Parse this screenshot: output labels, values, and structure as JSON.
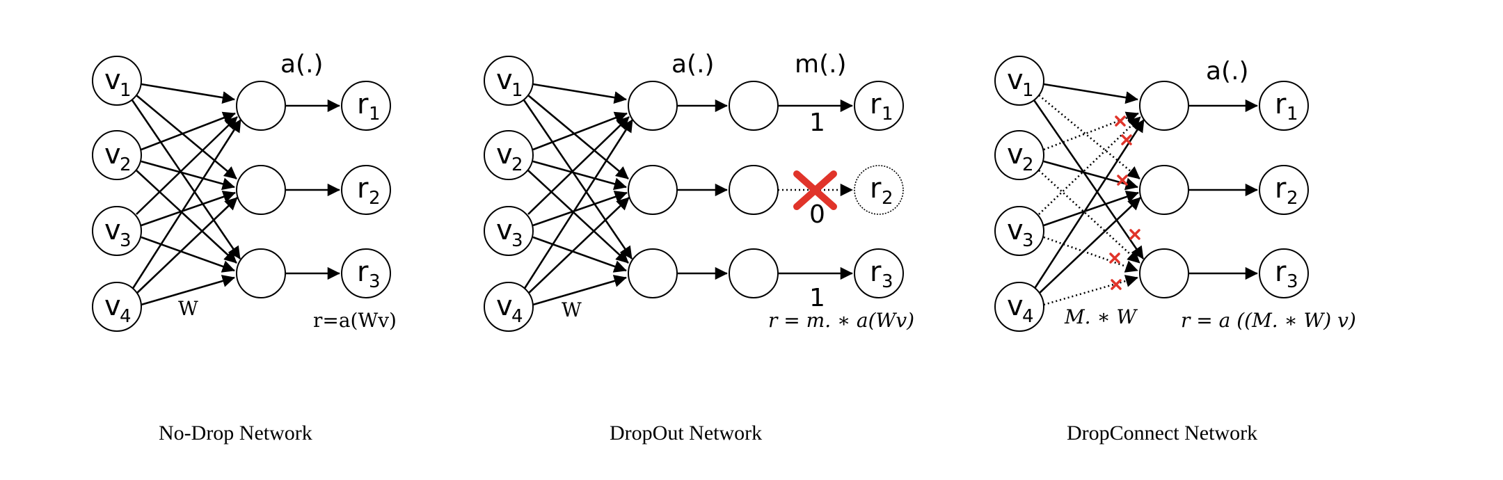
{
  "colors": {
    "line": "#000000",
    "drop_mark": "#e0342a"
  },
  "panels": [
    {
      "id": "nodrop",
      "inputs": [
        "v",
        "v",
        "v",
        "v"
      ],
      "input_subs": [
        "1",
        "2",
        "3",
        "4"
      ],
      "outputs": [
        "r",
        "r",
        "r"
      ],
      "output_subs": [
        "1",
        "2",
        "3"
      ],
      "activation_label": "a(.)",
      "weight_label": "W",
      "formula": "r=a(Wv)",
      "caption": "No-Drop Network"
    },
    {
      "id": "dropout",
      "inputs": [
        "v",
        "v",
        "v",
        "v"
      ],
      "input_subs": [
        "1",
        "2",
        "3",
        "4"
      ],
      "outputs": [
        "r",
        "r",
        "r"
      ],
      "output_subs": [
        "1",
        "2",
        "3"
      ],
      "activation_label": "a(.)",
      "mask_label": "m(.)",
      "mask_values": [
        "1",
        "0",
        "1"
      ],
      "dropped_output_index": 1,
      "weight_label": "W",
      "formula": "r = m. ∗ a(Wv)",
      "caption": "DropOut Network"
    },
    {
      "id": "dropconnect",
      "inputs": [
        "v",
        "v",
        "v",
        "v"
      ],
      "input_subs": [
        "1",
        "2",
        "3",
        "4"
      ],
      "outputs": [
        "r",
        "r",
        "r"
      ],
      "output_subs": [
        "1",
        "2",
        "3"
      ],
      "activation_label": "a(.)",
      "weight_label": "M. ∗ W",
      "formula": "r = a ((M. ∗ W) v)",
      "caption": "DropConnect Network",
      "dropped_connection_count": 6
    }
  ]
}
